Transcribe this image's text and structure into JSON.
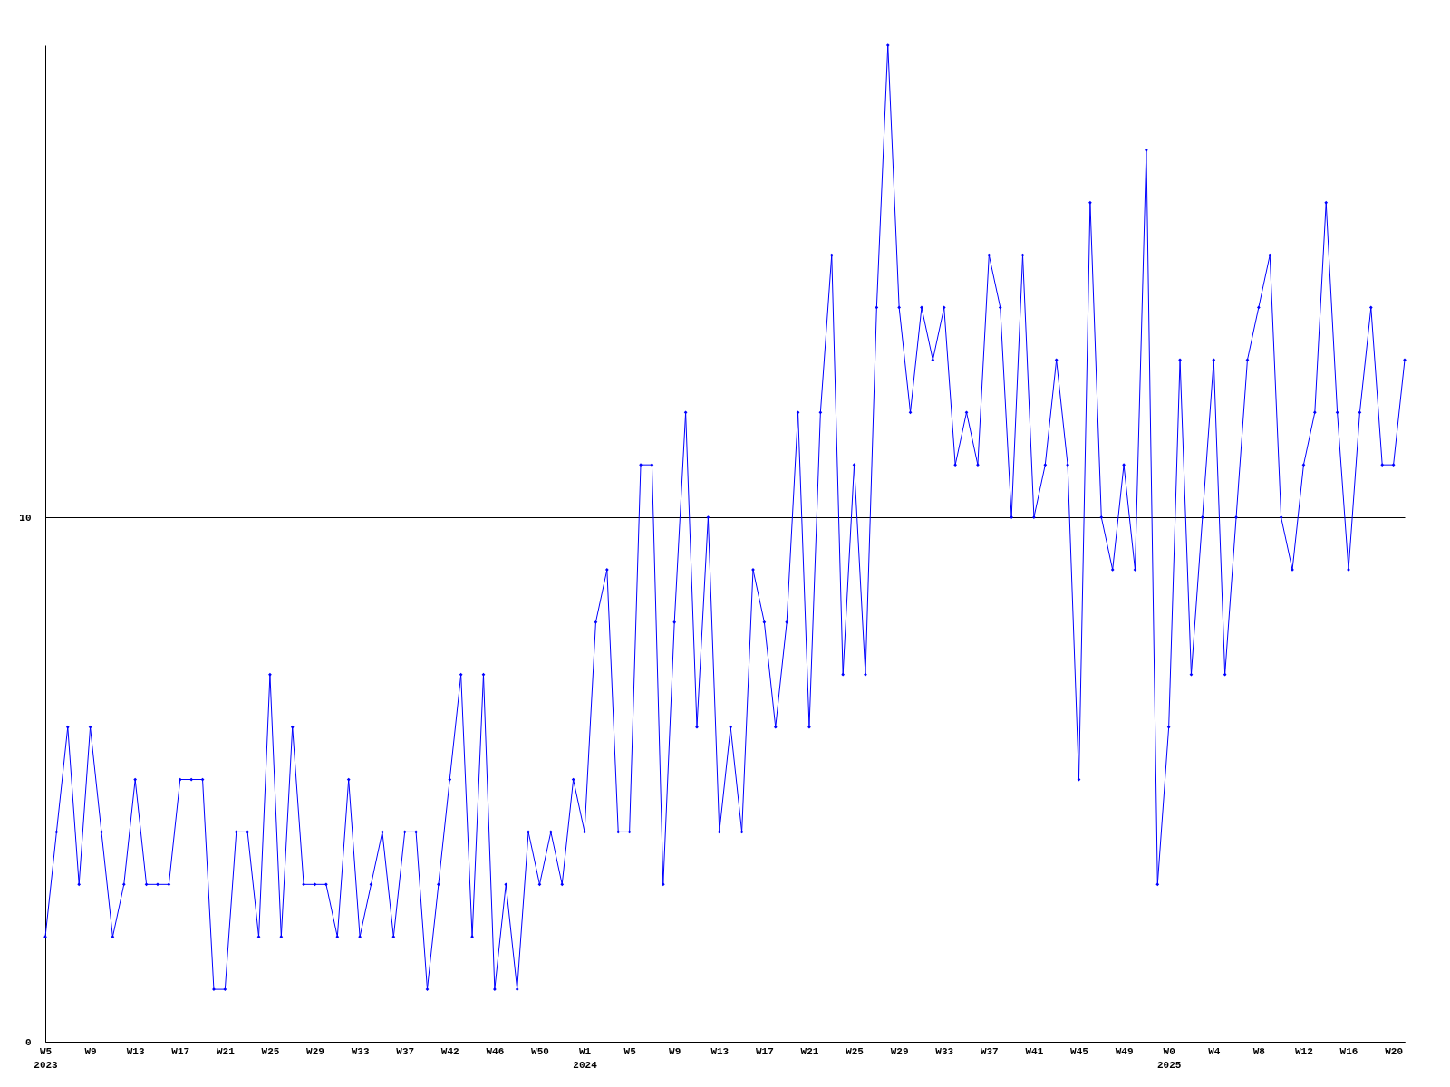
{
  "chart_data": {
    "type": "line",
    "color": "#0000ff",
    "marker": "diamond",
    "grid": "y",
    "ylim": [
      0,
      19
    ],
    "yticks": [
      0,
      10
    ],
    "categories": [
      "W5\n2023",
      null,
      null,
      null,
      "W9",
      null,
      null,
      null,
      "W13",
      null,
      null,
      null,
      "W17",
      null,
      null,
      null,
      "W21",
      null,
      null,
      null,
      "W25",
      null,
      null,
      null,
      "W29",
      null,
      null,
      null,
      "W33",
      null,
      null,
      null,
      "W37",
      null,
      null,
      null,
      "W42",
      null,
      null,
      null,
      "W46",
      null,
      null,
      null,
      "W50",
      null,
      null,
      null,
      "W1\n2024",
      null,
      null,
      null,
      "W5",
      null,
      null,
      null,
      "W9",
      null,
      null,
      null,
      "W13",
      null,
      null,
      null,
      "W17",
      null,
      null,
      null,
      "W21",
      null,
      null,
      null,
      "W25",
      null,
      null,
      null,
      "W29",
      null,
      null,
      null,
      "W33",
      null,
      null,
      null,
      "W37",
      null,
      null,
      null,
      "W41",
      null,
      null,
      null,
      "W45",
      null,
      null,
      null,
      "W49",
      null,
      null,
      null,
      "W0\n2025",
      null,
      null,
      null,
      "W4",
      null,
      null,
      null,
      "W8",
      null,
      null,
      null,
      "W12",
      null,
      null,
      null,
      "W16",
      null,
      null,
      null,
      "W20",
      null
    ],
    "values": [
      2,
      4,
      6,
      3,
      6,
      4,
      2,
      3,
      5,
      3,
      3,
      3,
      5,
      5,
      5,
      1,
      1,
      4,
      4,
      2,
      7,
      2,
      6,
      3,
      3,
      3,
      2,
      5,
      2,
      3,
      4,
      2,
      4,
      4,
      1,
      3,
      5,
      7,
      2,
      7,
      1,
      3,
      1,
      4,
      3,
      4,
      3,
      5,
      4,
      8,
      9,
      4,
      4,
      11,
      11,
      3,
      8,
      12,
      6,
      10,
      4,
      6,
      4,
      9,
      8,
      6,
      8,
      12,
      6,
      12,
      15,
      7,
      11,
      7,
      14,
      19,
      14,
      12,
      14,
      13,
      14,
      11,
      12,
      11,
      15,
      14,
      10,
      15,
      10,
      11,
      13,
      11,
      5,
      16,
      10,
      9,
      11,
      9,
      17,
      3,
      6,
      13,
      7,
      10,
      13,
      7,
      10,
      13,
      14,
      15,
      10,
      9,
      11,
      12,
      16,
      12,
      9,
      12,
      14,
      11,
      11,
      13
    ]
  }
}
